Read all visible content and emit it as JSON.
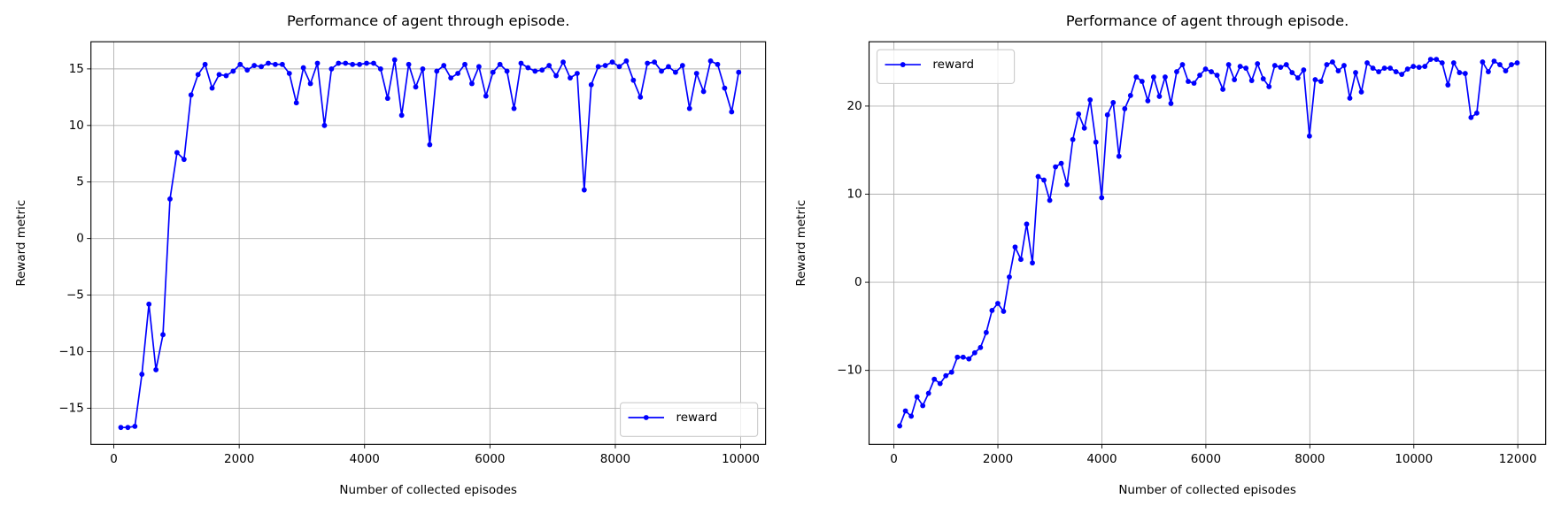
{
  "chart_data": [
    {
      "type": "line",
      "title": "Performance of agent through episode.",
      "x_label": "Number of collected episodes",
      "y_label": "Reward metric",
      "x": [
        112,
        224,
        336,
        448,
        560,
        672,
        784,
        896,
        1008,
        1120,
        1232,
        1344,
        1456,
        1568,
        1680,
        1792,
        1904,
        2016,
        2128,
        2240,
        2352,
        2464,
        2576,
        2688,
        2800,
        2912,
        3024,
        3136,
        3248,
        3360,
        3472,
        3584,
        3696,
        3808,
        3920,
        4032,
        4144,
        4256,
        4368,
        4480,
        4592,
        4704,
        4816,
        4928,
        5040,
        5152,
        5264,
        5376,
        5488,
        5600,
        5712,
        5824,
        5936,
        6048,
        6160,
        6272,
        6384,
        6496,
        6608,
        6720,
        6832,
        6944,
        7056,
        7168,
        7280,
        7392,
        7504,
        7616,
        7728,
        7840,
        7952,
        8064,
        8176,
        8288,
        8400,
        8512,
        8624,
        8736,
        8848,
        8960,
        9072,
        9184,
        9296,
        9408,
        9520,
        9632,
        9744,
        9856,
        9968
      ],
      "series": [
        {
          "name": "reward",
          "color": "#0000ff",
          "values": [
            -16.7,
            -16.7,
            -16.6,
            -12,
            -5.8,
            -11.6,
            -8.5,
            3.5,
            7.6,
            7.0,
            12.7,
            14.5,
            15.4,
            13.3,
            14.5,
            14.4,
            14.8,
            15.4,
            14.9,
            15.3,
            15.2,
            15.5,
            15.4,
            15.4,
            14.6,
            12.0,
            15.1,
            13.7,
            15.5,
            10.0,
            15.0,
            15.5,
            15.5,
            15.4,
            15.4,
            15.5,
            15.5,
            15.0,
            12.4,
            15.8,
            10.9,
            15.4,
            13.4,
            15.0,
            8.3,
            14.8,
            15.3,
            14.2,
            14.6,
            15.4,
            13.7,
            15.2,
            12.6,
            14.7,
            15.4,
            14.8,
            11.5,
            15.5,
            15.1,
            14.8,
            14.9,
            15.3,
            14.4,
            15.6,
            14.2,
            14.6,
            4.3,
            13.6,
            15.2,
            15.3,
            15.6,
            15.2,
            15.7,
            14.0,
            12.5,
            15.5,
            15.6,
            14.8,
            15.2,
            14.7,
            15.3,
            11.5,
            14.6,
            13.0,
            15.7,
            15.4,
            13.3,
            11.2,
            14.7
          ]
        }
      ],
      "xlim": [
        -365,
        10397
      ],
      "xticks": [
        0,
        2000,
        4000,
        6000,
        8000,
        10000
      ],
      "ylim": [
        -18.2,
        17.4
      ],
      "yticks": [
        {
          "value": -15,
          "label": "−15"
        },
        {
          "value": -10,
          "label": "−10"
        },
        {
          "value": -5,
          "label": "−5"
        },
        0,
        5,
        10,
        15
      ],
      "grid": true,
      "legend": "lower right"
    },
    {
      "type": "line",
      "title": "Performance of agent through episode.",
      "x_label": "Number of collected episodes",
      "y_label": "Reward metric",
      "x": [
        111,
        222,
        333,
        444,
        555,
        666,
        777,
        888,
        999,
        1110,
        1221,
        1332,
        1443,
        1554,
        1665,
        1776,
        1887,
        1998,
        2109,
        2220,
        2331,
        2442,
        2553,
        2664,
        2775,
        2886,
        2997,
        3108,
        3219,
        3330,
        3441,
        3552,
        3663,
        3774,
        3885,
        3996,
        4107,
        4218,
        4329,
        4440,
        4551,
        4662,
        4773,
        4884,
        4995,
        5106,
        5217,
        5328,
        5439,
        5550,
        5661,
        5772,
        5883,
        5994,
        6105,
        6216,
        6327,
        6438,
        6549,
        6660,
        6771,
        6882,
        6993,
        7104,
        7215,
        7326,
        7437,
        7548,
        7659,
        7770,
        7881,
        7992,
        8103,
        8214,
        8325,
        8436,
        8547,
        8658,
        8769,
        8880,
        8991,
        9102,
        9213,
        9324,
        9435,
        9546,
        9657,
        9768,
        9879,
        9990,
        10101,
        10212,
        10323,
        10434,
        10545,
        10656,
        10767,
        10878,
        10989,
        11100,
        11211,
        11322,
        11433,
        11544,
        11655,
        11766,
        11877,
        11988
      ],
      "series": [
        {
          "name": "reward",
          "color": "#0000ff",
          "values": [
            -16.3,
            -14.6,
            -15.2,
            -13.0,
            -14.0,
            -12.6,
            -11.0,
            -11.5,
            -10.6,
            -10.2,
            -8.5,
            -8.5,
            -8.7,
            -8.0,
            -7.4,
            -5.7,
            -3.2,
            -2.4,
            -3.3,
            0.6,
            4.0,
            2.6,
            6.6,
            2.2,
            12.0,
            11.6,
            9.3,
            13.1,
            13.5,
            11.1,
            16.2,
            19.1,
            17.5,
            20.7,
            15.9,
            9.6,
            19.0,
            20.4,
            14.3,
            19.7,
            21.2,
            23.3,
            22.8,
            20.6,
            23.3,
            21.1,
            23.3,
            20.3,
            23.9,
            24.7,
            22.8,
            22.6,
            23.5,
            24.2,
            23.9,
            23.5,
            21.9,
            24.7,
            23.0,
            24.5,
            24.3,
            22.9,
            24.8,
            23.1,
            22.2,
            24.6,
            24.4,
            24.7,
            23.8,
            23.2,
            24.1,
            16.6,
            23.0,
            22.8,
            24.7,
            25.0,
            24.0,
            24.6,
            20.9,
            23.8,
            21.6,
            24.9,
            24.3,
            23.9,
            24.3,
            24.3,
            23.9,
            23.6,
            24.2,
            24.5,
            24.4,
            24.5,
            25.3,
            25.3,
            24.9,
            22.4,
            24.9,
            23.8,
            23.7,
            18.7,
            19.2,
            25.0,
            23.9,
            25.1,
            24.7,
            24.0,
            24.7,
            24.9
          ]
        }
      ],
      "xlim": [
        -478,
        12536
      ],
      "xticks": [
        0,
        2000,
        4000,
        6000,
        8000,
        10000,
        12000
      ],
      "ylim": [
        -18.4,
        27.3
      ],
      "yticks": [
        {
          "value": -10,
          "label": "−10"
        },
        0,
        10,
        20
      ],
      "grid": true,
      "legend": "upper left"
    }
  ]
}
